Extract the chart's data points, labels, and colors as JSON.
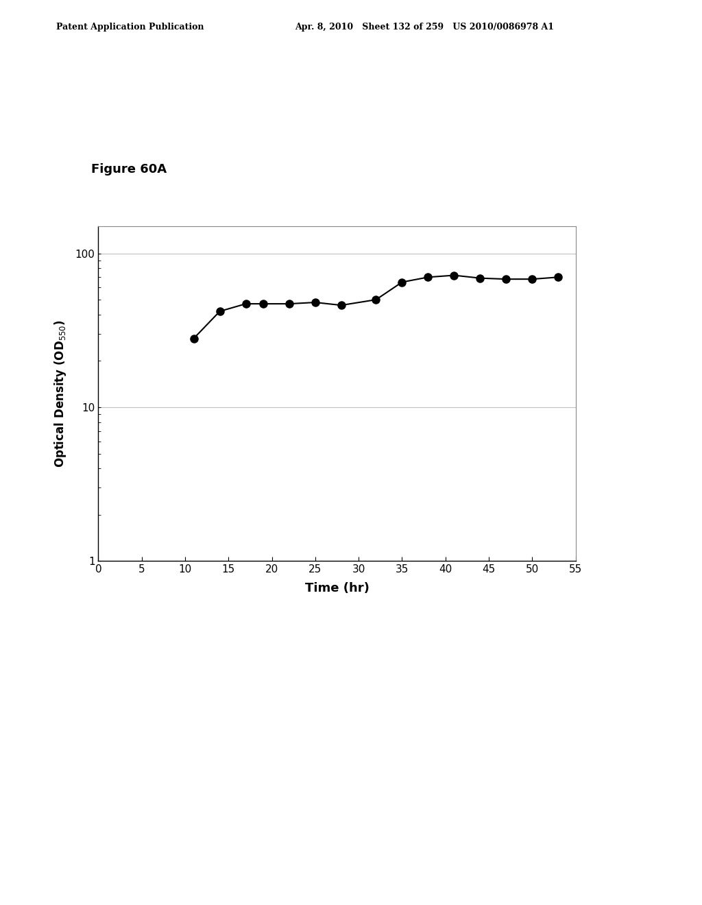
{
  "title": "Figure 60A",
  "xlabel": "Time (hr)",
  "ylabel": "Optical Density (OD$_{550}$)",
  "x_data": [
    11,
    14,
    17,
    19,
    22,
    25,
    28,
    32,
    35,
    38,
    41,
    44,
    47,
    50,
    53
  ],
  "y_data": [
    28,
    42,
    47,
    47,
    47,
    48,
    46,
    50,
    65,
    70,
    72,
    69,
    68,
    68,
    70
  ],
  "xlim": [
    0,
    55
  ],
  "ylim": [
    1,
    150
  ],
  "xticks": [
    0,
    5,
    10,
    15,
    20,
    25,
    30,
    35,
    40,
    45,
    50,
    55
  ],
  "background_color": "#ffffff",
  "line_color": "#000000",
  "marker_color": "#000000",
  "header_left": "Patent Application Publication",
  "header_mid": "Apr. 8, 2010   Sheet 132 of 259   US 2010/0086978 A1",
  "figure_label": "Figure 60A"
}
